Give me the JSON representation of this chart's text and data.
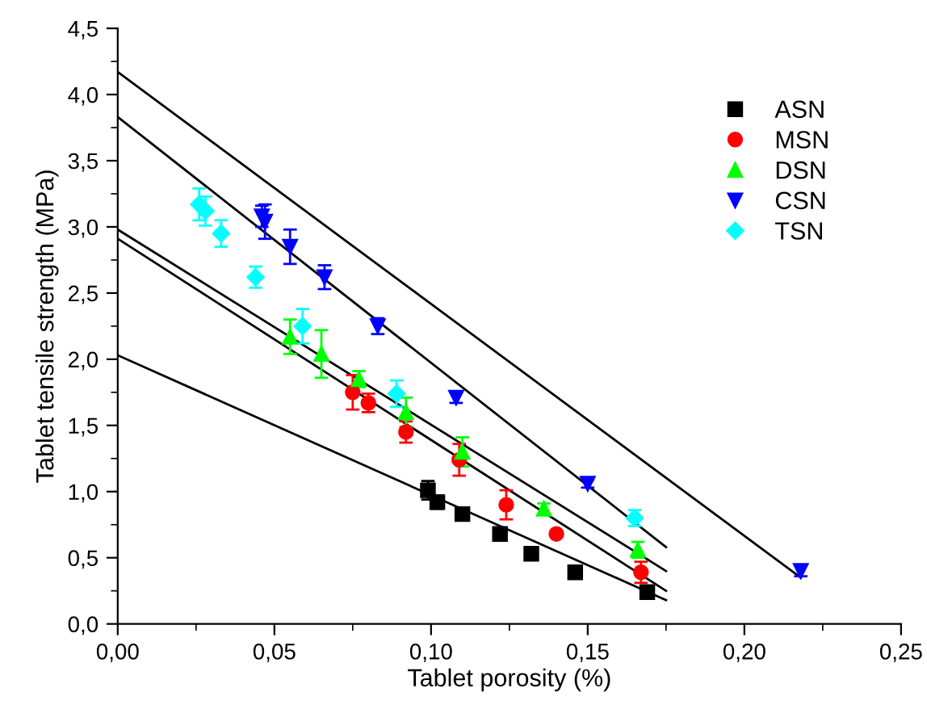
{
  "chart_data": {
    "type": "scatter",
    "xlabel": "Tablet porosity (%)",
    "ylabel": "Tablet tensile strength (MPa)",
    "xlim": [
      0,
      0.25
    ],
    "ylim": [
      0,
      4.5
    ],
    "xticks": [
      {
        "value": 0,
        "label": "0,00"
      },
      {
        "value": 0.05,
        "label": "0,05"
      },
      {
        "value": 0.1,
        "label": "0,10"
      },
      {
        "value": 0.15,
        "label": "0,15"
      },
      {
        "value": 0.2,
        "label": "0,20"
      },
      {
        "value": 0.25,
        "label": "0,25"
      }
    ],
    "yticks": [
      {
        "value": 0,
        "label": "0,0"
      },
      {
        "value": 0.5,
        "label": "0,5"
      },
      {
        "value": 1,
        "label": "1,0"
      },
      {
        "value": 1.5,
        "label": "1,5"
      },
      {
        "value": 2,
        "label": "2,0"
      },
      {
        "value": 2.5,
        "label": "2,5"
      },
      {
        "value": 3,
        "label": "3,0"
      },
      {
        "value": 3.5,
        "label": "3,5"
      },
      {
        "value": 4,
        "label": "4,0"
      },
      {
        "value": 4.5,
        "label": "4,5"
      }
    ],
    "legend": "top right",
    "grid": false,
    "series": [
      {
        "name": "ASN",
        "color": "#000000",
        "marker": "square",
        "x": [
          0.099,
          0.102,
          0.11,
          0.122,
          0.132,
          0.146,
          0.169
        ],
        "values": [
          1.01,
          0.92,
          0.83,
          0.68,
          0.53,
          0.39,
          0.24
        ],
        "errors": [
          0.07,
          0.05,
          null,
          null,
          null,
          null,
          null
        ]
      },
      {
        "name": "MSN",
        "color": "#ff0000",
        "marker": "circle",
        "x": [
          0.075,
          0.08,
          0.092,
          0.109,
          0.124,
          0.14,
          0.167
        ],
        "values": [
          1.75,
          1.67,
          1.45,
          1.24,
          0.9,
          0.68,
          0.39
        ],
        "errors": [
          0.13,
          0.07,
          0.08,
          0.12,
          0.11,
          null,
          0.08
        ]
      },
      {
        "name": "DSN",
        "color": "#00ff00",
        "marker": "triangle",
        "x": [
          0.055,
          0.065,
          0.077,
          0.092,
          0.11,
          0.136,
          0.166
        ],
        "values": [
          2.17,
          2.04,
          1.85,
          1.6,
          1.3,
          0.87,
          0.56
        ],
        "errors": [
          0.13,
          0.18,
          0.06,
          0.11,
          0.11,
          0.04,
          0.06
        ]
      },
      {
        "name": "CSN",
        "color": "#0000ff",
        "marker": "triangle_down",
        "x": [
          0.046,
          0.047,
          0.055,
          0.066,
          0.083,
          0.108,
          0.15,
          0.218
        ],
        "values": [
          3.08,
          3.04,
          2.85,
          2.62,
          2.25,
          1.71,
          1.06,
          0.4
        ],
        "errors": [
          0.08,
          0.13,
          0.13,
          0.09,
          0.06,
          0.04,
          0.03,
          0.04
        ]
      },
      {
        "name": "TSN",
        "color": "#00ffff",
        "marker": "diamond",
        "x": [
          0.026,
          0.028,
          0.033,
          0.044,
          0.059,
          0.089,
          0.165
        ],
        "values": [
          3.17,
          3.12,
          2.95,
          2.62,
          2.25,
          1.74,
          0.8
        ],
        "errors": [
          0.12,
          0.11,
          0.1,
          0.08,
          0.13,
          0.1,
          0.06
        ]
      },
      {
        "type": "line",
        "color": "#000000",
        "x": [
          0,
          0.175
        ],
        "values": [
          2.03,
          0.18
        ]
      },
      {
        "type": "line",
        "color": "#000000",
        "x": [
          0,
          0.175
        ],
        "values": [
          2.91,
          0.25
        ]
      },
      {
        "type": "line",
        "color": "#000000",
        "x": [
          0,
          0.175
        ],
        "values": [
          2.98,
          0.4
        ]
      },
      {
        "type": "line",
        "color": "#000000",
        "x": [
          0,
          0.175
        ],
        "values": [
          3.83,
          0.58
        ]
      },
      {
        "type": "line",
        "color": "#000000",
        "x": [
          0,
          0.218
        ],
        "values": [
          4.17,
          0.35
        ]
      }
    ]
  }
}
